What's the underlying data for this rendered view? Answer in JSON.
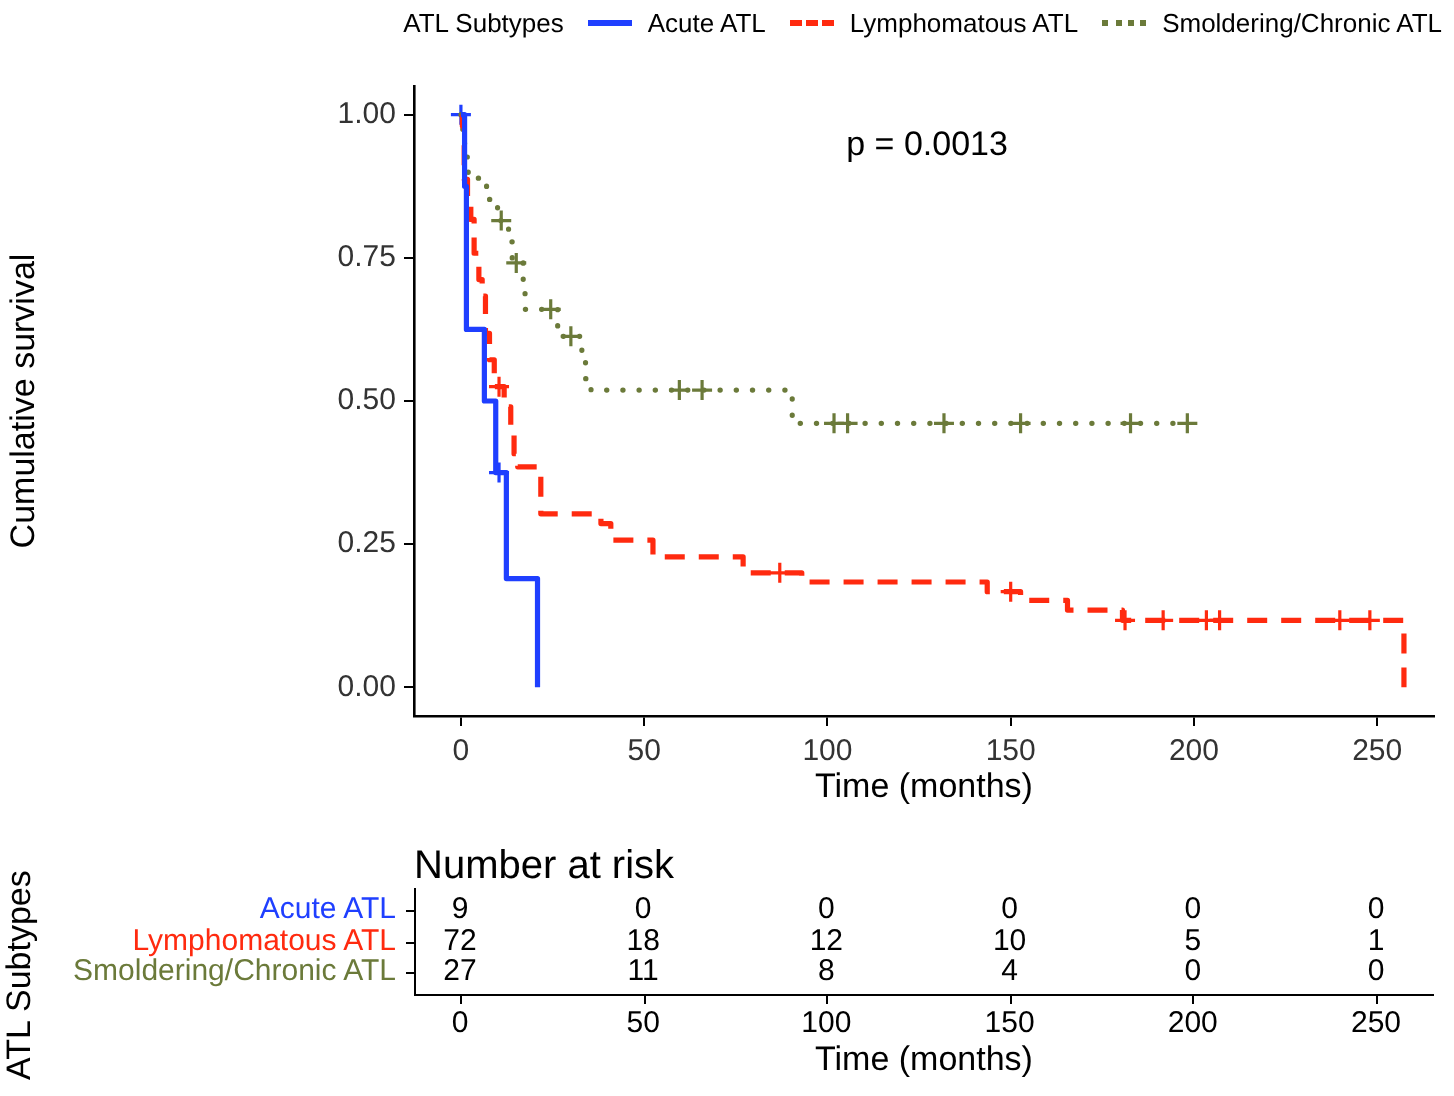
{
  "chart_data": [
    {
      "type": "step",
      "xlabel": "Time (months)",
      "ylabel": "Cumulative survival",
      "legend_title": "ATL Subtypes",
      "legend": "top",
      "annotations": [
        "p = 0.0013"
      ],
      "grid": false,
      "xlim": [
        -12.8,
        265.5
      ],
      "xticks": [
        0,
        50,
        100,
        150,
        200,
        250
      ],
      "ylim": [
        -0.05,
        1.05
      ],
      "yticks": [
        {
          "value": 0,
          "label": "0.00"
        },
        {
          "value": 0.25,
          "label": "0.25"
        },
        {
          "value": 0.5,
          "label": "0.50"
        },
        {
          "value": 0.75,
          "label": "0.75"
        },
        {
          "value": 1,
          "label": "1.00"
        }
      ],
      "series": [
        {
          "name": "Acute ATL",
          "color": "#1f3fff",
          "line_style": "solid",
          "x": [
            0,
            1,
            1.5,
            6.4,
            9.5,
            12.4,
            20.9
          ],
          "values": [
            1,
            0.875,
            0.625,
            0.5,
            0.375,
            0.19,
            0
          ]
        },
        {
          "name": "Lymphomatous ATL",
          "color": "#ff2a0f",
          "line_style": "dashed",
          "x": [
            0,
            0.4,
            0.9,
            1.8,
            2.7,
            3.6,
            4.9,
            5.8,
            6.7,
            7.8,
            9.1,
            11.8,
            13.6,
            14.5,
            15.5,
            21.8,
            38.2,
            40.9,
            52.4,
            77,
            93,
            143.6,
            152.7,
            165.5,
            180.5,
            257.3
          ],
          "values": [
            1,
            0.98,
            0.887,
            0.85,
            0.817,
            0.758,
            0.712,
            0.683,
            0.618,
            0.572,
            0.525,
            0.49,
            0.443,
            0.408,
            0.385,
            0.303,
            0.286,
            0.257,
            0.228,
            0.2,
            0.184,
            0.167,
            0.152,
            0.135,
            0.117,
            0
          ]
        },
        {
          "name": "Smoldering/Chronic ATL",
          "color": "#6b7a3a",
          "line_style": "dotted",
          "x": [
            0,
            0.5,
            1,
            2,
            7,
            10,
            13,
            14,
            17,
            17.5,
            26.4,
            33,
            34,
            35.5,
            90.4,
            198.2
          ],
          "values": [
            1,
            0.963,
            0.926,
            0.889,
            0.852,
            0.815,
            0.778,
            0.741,
            0.704,
            0.66,
            0.613,
            0.575,
            0.539,
            0.519,
            0.461,
            0.461
          ]
        },
        {
          "type": "scatter",
          "marker": "cross",
          "color": "#1f3fff",
          "x": [
            0,
            10.4
          ],
          "values": [
            1,
            0.375
          ]
        },
        {
          "type": "scatter",
          "marker": "cross",
          "color": "#ff2a0f",
          "x": [
            10.4,
            87,
            150,
            181.2,
            191.6,
            203.4,
            207,
            239.8,
            248
          ],
          "values": [
            0.525,
            0.2,
            0.167,
            0.117,
            0.117,
            0.117,
            0.117,
            0.117,
            0.117
          ]
        },
        {
          "type": "scatter",
          "marker": "cross",
          "color": "#6b7a3a",
          "x": [
            11,
            15.1,
            24.5,
            30,
            59.6,
            65.8,
            101.8,
            105.5,
            131.8,
            152.7,
            182.7,
            198.2
          ],
          "values": [
            0.815,
            0.741,
            0.66,
            0.613,
            0.519,
            0.519,
            0.461,
            0.461,
            0.461,
            0.461,
            0.461,
            0.461
          ]
        }
      ]
    },
    {
      "type": "heatmap",
      "data_labels": true,
      "title": "Number at risk",
      "xlabel": "Time (months)",
      "ylabel": "ATL Subtypes",
      "categories": [
        "0",
        "50",
        "100",
        "150",
        "200",
        "250"
      ],
      "y_categories": [
        "Acute ATL",
        "Lymphomatous ATL",
        "Smoldering/Chronic ATL"
      ],
      "cells": [
        [
          9,
          0,
          0,
          0,
          0,
          0
        ],
        [
          72,
          18,
          12,
          10,
          5,
          1
        ],
        [
          27,
          11,
          8,
          4,
          0,
          0
        ]
      ]
    }
  ]
}
